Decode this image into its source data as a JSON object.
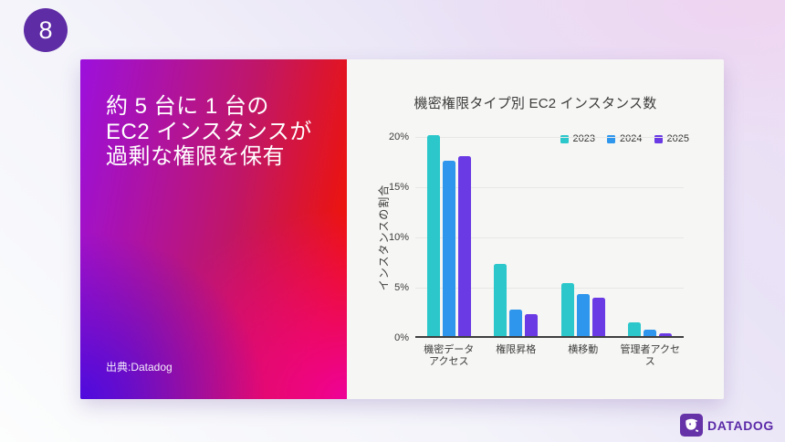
{
  "slide_number": "8",
  "left_panel": {
    "headline_lines": [
      "約 5 台に 1 台の",
      "EC2 インスタンスが",
      "過剰な権限を保有"
    ],
    "source": "出典:Datadog",
    "gradient_colors": {
      "top_left": "#9c10dc",
      "top_right": "#ef1407",
      "bottom_left": "#5e0bd0",
      "bottom_right": "#ee00a5"
    }
  },
  "chart_data": {
    "type": "bar",
    "title": "機密権限タイプ別 EC2 インスタンス数",
    "ylabel": "インスタンスの割合",
    "categories": [
      "機密データ\nアクセス",
      "権限昇格",
      "横移動",
      "管理者アクセス"
    ],
    "series": [
      {
        "name": "2023",
        "color": "#2bc7cb",
        "values": [
          20.0,
          7.2,
          5.3,
          1.4
        ]
      },
      {
        "name": "2024",
        "color": "#2e96ec",
        "values": [
          17.5,
          2.6,
          4.2,
          0.6
        ]
      },
      {
        "name": "2025",
        "color": "#6a3ae4",
        "values": [
          17.9,
          2.2,
          3.8,
          0.3
        ]
      }
    ],
    "ylim": [
      0,
      20
    ],
    "yticks": [
      "0%",
      "5%",
      "10%",
      "15%",
      "20%"
    ],
    "grid": true,
    "legend_position": "top-right"
  },
  "footer": {
    "brand": "DATADOG"
  }
}
